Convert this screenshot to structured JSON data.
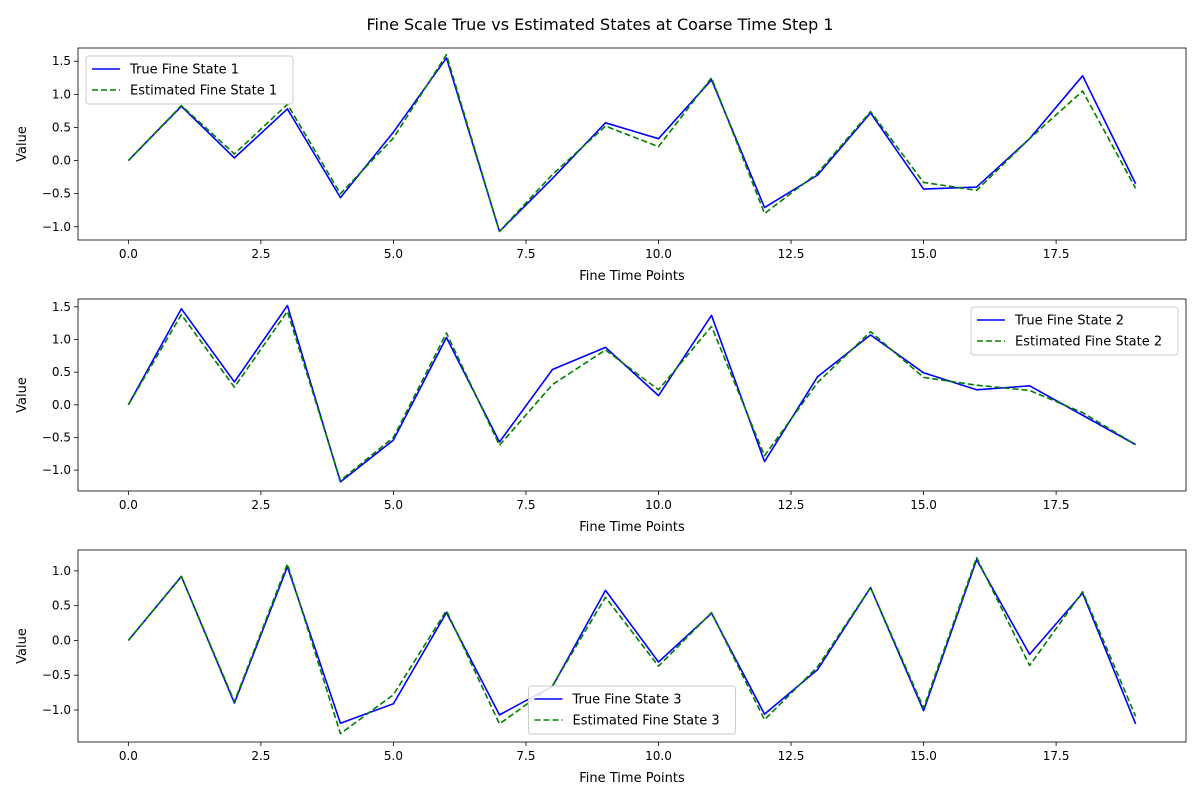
{
  "figure_title": "Fine Scale True vs Estimated States at Coarse Time Step 1",
  "colors": {
    "true": "#0000ff",
    "estimated": "#008000"
  },
  "chart_data": [
    {
      "type": "line",
      "xlabel": "Fine Time Points",
      "ylabel": "Value",
      "xlim": [
        -0.95,
        19.95
      ],
      "ylim": [
        -1.2,
        1.7
      ],
      "xticks": [
        0.0,
        2.5,
        5.0,
        7.5,
        10.0,
        12.5,
        15.0,
        17.5
      ],
      "xtick_labels": [
        "0.0",
        "2.5",
        "5.0",
        "7.5",
        "10.0",
        "12.5",
        "15.0",
        "17.5"
      ],
      "yticks": [
        -1.0,
        -0.5,
        0.0,
        0.5,
        1.0,
        1.5
      ],
      "ytick_labels": [
        "−1.0",
        "−0.5",
        "0.0",
        "0.5",
        "1.0",
        "1.5"
      ],
      "legend_position": "upper-left",
      "x": [
        0,
        1,
        2,
        3,
        4,
        5,
        6,
        7,
        8,
        9,
        10,
        11,
        12,
        13,
        14,
        15,
        16,
        17,
        18,
        19
      ],
      "series": [
        {
          "name": "True Fine State 1",
          "style": "solid",
          "values": [
            0.0,
            0.82,
            0.04,
            0.78,
            -0.56,
            0.43,
            1.55,
            -1.07,
            -0.27,
            0.57,
            0.33,
            1.22,
            -0.71,
            -0.22,
            0.72,
            -0.43,
            -0.4,
            0.33,
            1.28,
            -0.35
          ]
        },
        {
          "name": "Estimated Fine State 1",
          "style": "dashed",
          "values": [
            0.0,
            0.83,
            0.1,
            0.85,
            -0.5,
            0.34,
            1.6,
            -1.07,
            -0.21,
            0.52,
            0.21,
            1.25,
            -0.8,
            -0.19,
            0.74,
            -0.33,
            -0.45,
            0.33,
            1.05,
            -0.42
          ]
        }
      ]
    },
    {
      "type": "line",
      "xlabel": "Fine Time Points",
      "ylabel": "Value",
      "xlim": [
        -0.95,
        19.95
      ],
      "ylim": [
        -1.32,
        1.62
      ],
      "xticks": [
        0.0,
        2.5,
        5.0,
        7.5,
        10.0,
        12.5,
        15.0,
        17.5
      ],
      "xtick_labels": [
        "0.0",
        "2.5",
        "5.0",
        "7.5",
        "10.0",
        "12.5",
        "15.0",
        "17.5"
      ],
      "yticks": [
        -1.0,
        -0.5,
        0.0,
        0.5,
        1.0,
        1.5
      ],
      "ytick_labels": [
        "−1.0",
        "−0.5",
        "0.0",
        "0.5",
        "1.0",
        "1.5"
      ],
      "legend_position": "upper-right",
      "x": [
        0,
        1,
        2,
        3,
        4,
        5,
        6,
        7,
        8,
        9,
        10,
        11,
        12,
        13,
        14,
        15,
        16,
        17,
        18,
        19
      ],
      "series": [
        {
          "name": "True Fine State 2",
          "style": "solid",
          "values": [
            0.0,
            1.47,
            0.35,
            1.52,
            -1.18,
            -0.54,
            1.03,
            -0.57,
            0.54,
            0.88,
            0.14,
            1.37,
            -0.87,
            0.43,
            1.07,
            0.49,
            0.23,
            0.29,
            -0.16,
            -0.61
          ]
        },
        {
          "name": "Estimated Fine State 2",
          "style": "dashed",
          "values": [
            0.0,
            1.38,
            0.27,
            1.43,
            -1.16,
            -0.5,
            1.1,
            -0.62,
            0.31,
            0.84,
            0.23,
            1.2,
            -0.78,
            0.34,
            1.12,
            0.42,
            0.3,
            0.22,
            -0.12,
            -0.61
          ]
        }
      ]
    },
    {
      "type": "line",
      "xlabel": "Fine Time Points",
      "ylabel": "Value",
      "xlim": [
        -0.95,
        19.95
      ],
      "ylim": [
        -1.46,
        1.3
      ],
      "xticks": [
        0.0,
        2.5,
        5.0,
        7.5,
        10.0,
        12.5,
        15.0,
        17.5
      ],
      "xtick_labels": [
        "0.0",
        "2.5",
        "5.0",
        "7.5",
        "10.0",
        "12.5",
        "15.0",
        "17.5"
      ],
      "yticks": [
        -1.0,
        -0.5,
        0.0,
        0.5,
        1.0
      ],
      "ytick_labels": [
        "−1.0",
        "−0.5",
        "0.0",
        "0.5",
        "1.0"
      ],
      "legend_position": "lower-center",
      "x": [
        0,
        1,
        2,
        3,
        4,
        5,
        6,
        7,
        8,
        9,
        10,
        11,
        12,
        13,
        14,
        15,
        16,
        17,
        18,
        19
      ],
      "series": [
        {
          "name": "True Fine State 3",
          "style": "solid",
          "values": [
            0.0,
            0.92,
            -0.9,
            1.06,
            -1.19,
            -0.91,
            0.4,
            -1.07,
            -0.66,
            0.72,
            -0.31,
            0.39,
            -1.06,
            -0.42,
            0.76,
            -1.01,
            1.16,
            -0.2,
            0.68,
            -1.2
          ]
        },
        {
          "name": "Estimated Fine State 3",
          "style": "dashed",
          "values": [
            0.0,
            0.92,
            -0.88,
            1.1,
            -1.34,
            -0.78,
            0.43,
            -1.2,
            -0.65,
            0.62,
            -0.37,
            0.4,
            -1.14,
            -0.38,
            0.76,
            -0.97,
            1.19,
            -0.36,
            0.7,
            -1.09
          ]
        }
      ]
    }
  ]
}
